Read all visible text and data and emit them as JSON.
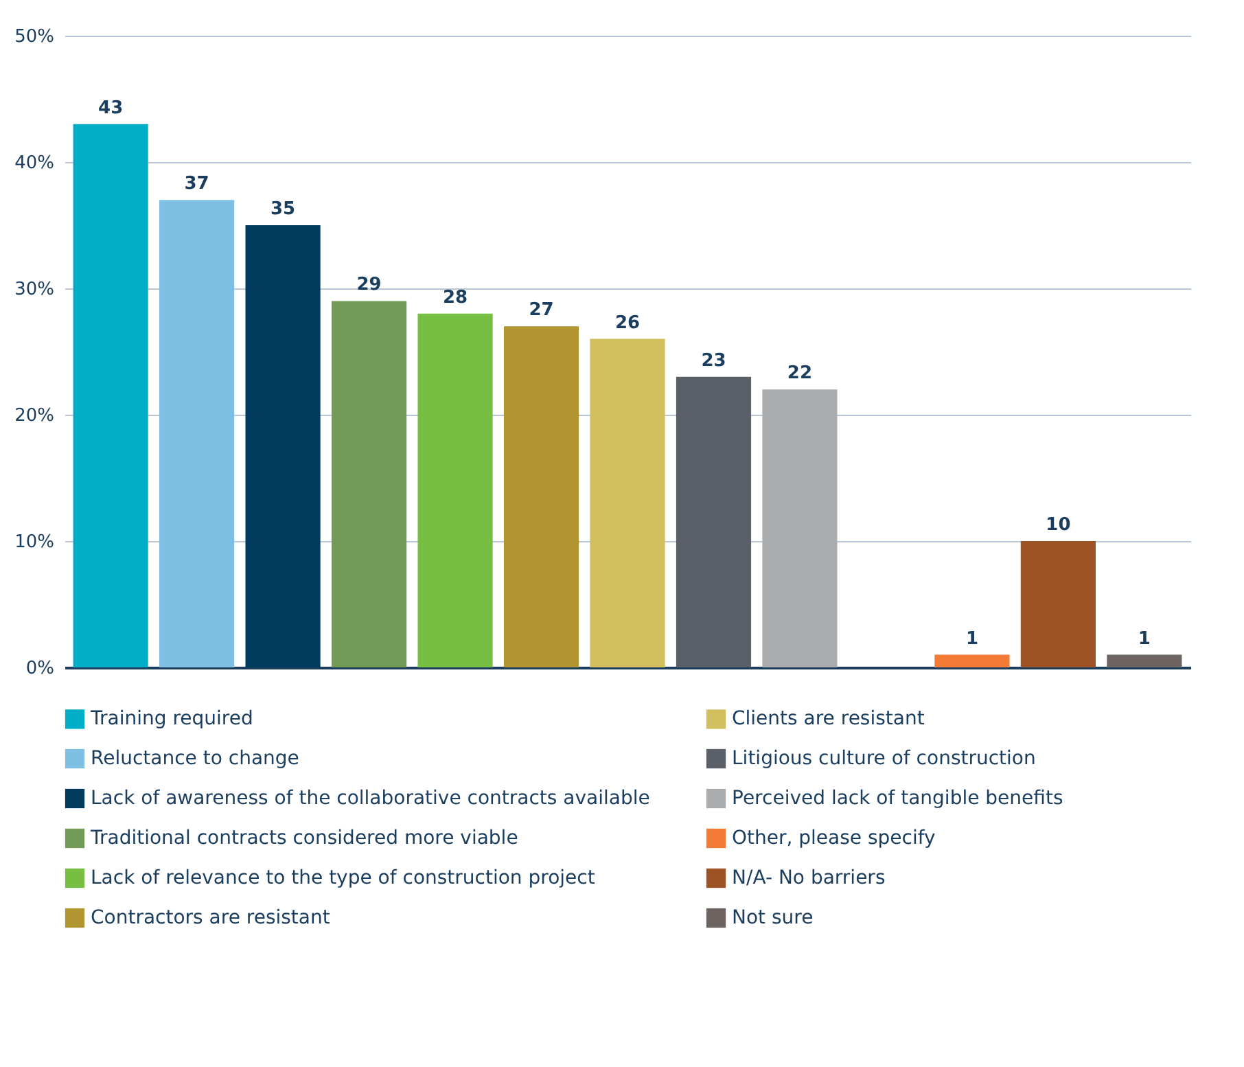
{
  "chart_data": {
    "type": "bar",
    "categories": [
      null,
      null,
      null,
      null,
      null,
      null,
      null,
      null,
      null,
      null,
      null,
      null,
      null
    ],
    "series": [
      {
        "name": "Training required",
        "color": "#00aec7",
        "values": [
          43,
          null,
          null,
          null,
          null,
          null,
          null,
          null,
          null,
          null,
          null,
          null,
          null
        ]
      },
      {
        "name": "Reluctance to change",
        "color": "#7fbfe3",
        "values": [
          null,
          37,
          null,
          null,
          null,
          null,
          null,
          null,
          null,
          null,
          null,
          null,
          null
        ]
      },
      {
        "name": "Lack of awareness of the collaborative contracts available",
        "color": "#003a5d",
        "values": [
          null,
          null,
          35,
          null,
          null,
          null,
          null,
          null,
          null,
          null,
          null,
          null,
          null
        ]
      },
      {
        "name": "Traditional contracts considered more viable",
        "color": "#719b56",
        "values": [
          null,
          null,
          null,
          29,
          null,
          null,
          null,
          null,
          null,
          null,
          null,
          null,
          null
        ]
      },
      {
        "name": "Lack of relevance to the type of construction project",
        "color": "#76bf43",
        "values": [
          null,
          null,
          null,
          null,
          28,
          null,
          null,
          null,
          null,
          null,
          null,
          null,
          null
        ]
      },
      {
        "name": "Contractors are resistant",
        "color": "#b09530",
        "values": [
          null,
          null,
          null,
          null,
          null,
          27,
          null,
          null,
          null,
          null,
          null,
          null,
          null
        ]
      },
      {
        "name": "Clients are resistant",
        "color": "#d1bf5d",
        "values": [
          null,
          null,
          null,
          null,
          null,
          null,
          26,
          null,
          null,
          null,
          null,
          null,
          null
        ]
      },
      {
        "name": "Litigious culture of construction",
        "color": "#5a5f68",
        "values": [
          null,
          null,
          null,
          null,
          null,
          null,
          null,
          23,
          null,
          null,
          null,
          null,
          null
        ]
      },
      {
        "name": "Perceived lack of tangible benefits",
        "color": "#a9abad",
        "values": [
          null,
          null,
          null,
          null,
          null,
          null,
          null,
          null,
          22,
          null,
          null,
          null,
          null
        ]
      },
      {
        "name": "Other, please specify",
        "color": "#f47b36",
        "values": [
          null,
          null,
          null,
          null,
          null,
          null,
          null,
          null,
          null,
          null,
          1,
          null,
          null
        ]
      },
      {
        "name": "N/A- No barriers",
        "color": "#9d5323",
        "values": [
          null,
          null,
          null,
          null,
          null,
          null,
          null,
          null,
          null,
          null,
          null,
          10,
          null
        ]
      },
      {
        "name": "Not sure",
        "color": "#6d6462",
        "values": [
          null,
          null,
          null,
          null,
          null,
          null,
          null,
          null,
          null,
          null,
          null,
          null,
          1
        ]
      }
    ],
    "ylim": [
      0,
      50
    ],
    "yticks": [
      {
        "value": 0,
        "label": "0%"
      },
      {
        "value": 10,
        "label": "10%"
      },
      {
        "value": 20,
        "label": "20%"
      },
      {
        "value": 30,
        "label": "30%"
      },
      {
        "value": 40,
        "label": "40%"
      },
      {
        "value": 50,
        "label": "50%"
      }
    ],
    "grid": "y",
    "data_labels": true,
    "legend": "bottom",
    "tick_labels": "y"
  }
}
